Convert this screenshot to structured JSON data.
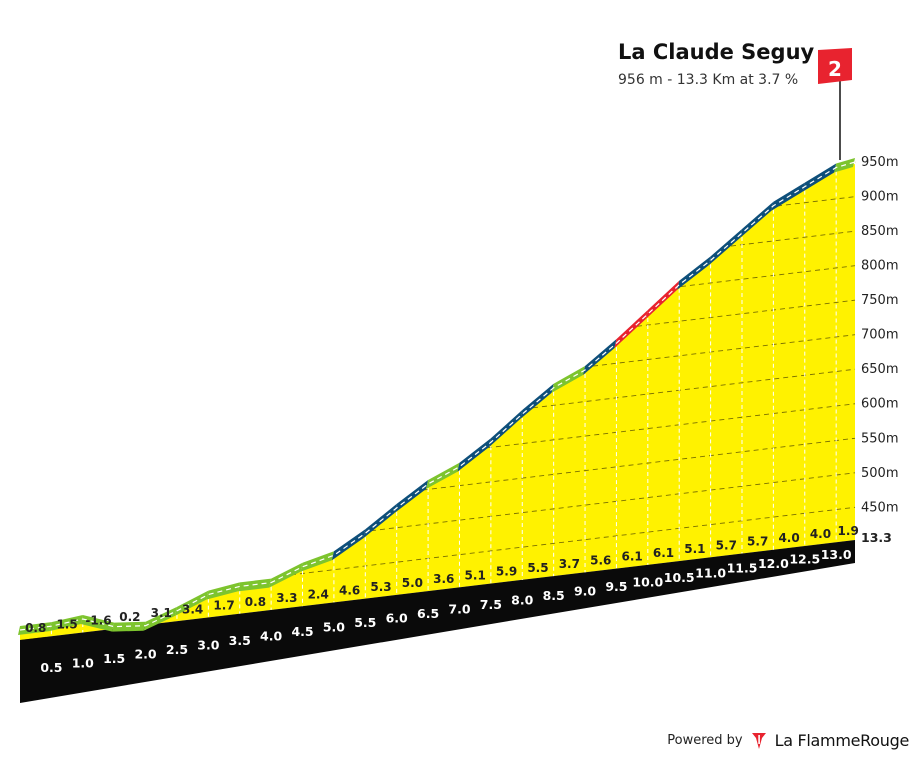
{
  "chart_data": {
    "type": "area",
    "title": "La Claude Seguy",
    "subtitle": "956 m - 13.3 Km at 3.7 %",
    "category_marker": "2",
    "x_km": [
      0,
      0.5,
      1.0,
      1.5,
      2.0,
      2.5,
      3.0,
      3.5,
      4.0,
      4.5,
      5.0,
      5.5,
      6.0,
      6.5,
      7.0,
      7.5,
      8.0,
      8.5,
      9.0,
      9.5,
      10.0,
      10.5,
      11.0,
      11.5,
      12.0,
      12.5,
      13.0,
      13.3
    ],
    "x_tick_labels": [
      "0.5",
      "1.0",
      "1.5",
      "2.0",
      "2.5",
      "3.0",
      "3.5",
      "4.0",
      "4.5",
      "5.0",
      "5.5",
      "6.0",
      "6.5",
      "7.0",
      "7.5",
      "8.0",
      "8.5",
      "9.0",
      "9.5",
      "10.0",
      "10.5",
      "11.0",
      "11.5",
      "12.0",
      "12.5",
      "13.0",
      "13.3"
    ],
    "segment_gradients_pct": [
      0.8,
      1.5,
      -1.6,
      0.2,
      3.1,
      3.4,
      1.7,
      0.8,
      3.3,
      2.4,
      4.6,
      5.3,
      5.0,
      3.6,
      5.1,
      5.9,
      5.5,
      3.7,
      5.6,
      6.1,
      6.1,
      5.1,
      5.7,
      5.7,
      4.0,
      4.0,
      1.9
    ],
    "gradient_labels": [
      "0.8",
      "1.5",
      "-1.6",
      "0.2",
      "3.1",
      "3.4",
      "1.7",
      "0.8",
      "3.3",
      "2.4",
      "4.6",
      "5.3",
      "5.0",
      "3.6",
      "5.1",
      "5.9",
      "5.5",
      "3.7",
      "5.6",
      "6.1",
      "6.1",
      "5.1",
      "5.7",
      "5.7",
      "4.0",
      "4.0",
      "1.9"
    ],
    "y_ticks_m": [
      450,
      500,
      550,
      600,
      650,
      700,
      750,
      800,
      850,
      900,
      950
    ],
    "y_tick_labels": [
      "450m",
      "500m",
      "550m",
      "600m",
      "650m",
      "700m",
      "750m",
      "800m",
      "850m",
      "900m",
      "950m"
    ],
    "summit_altitude_m": 956,
    "colors": {
      "fill": "#fff200",
      "gradient_under_4": "#7dc42e",
      "gradient_4_to_6": "#0e4f7a",
      "gradient_6_and_above": "#e8232f",
      "base": "#0a0a0a",
      "side": "#8d6a0a",
      "flag": "#e8232f"
    }
  },
  "branding": {
    "powered_by": "Powered by",
    "name": "La FlammeRouge"
  }
}
